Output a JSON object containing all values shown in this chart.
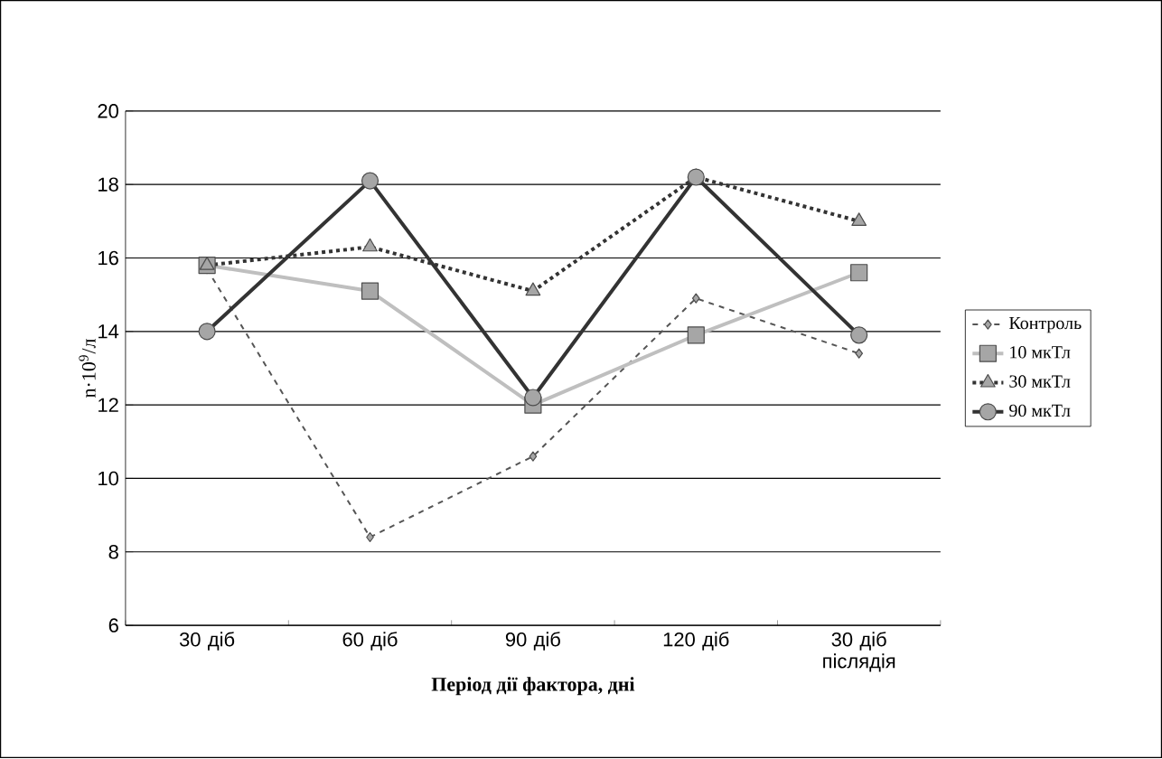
{
  "chart_data": {
    "type": "line",
    "xlabel": "Період дії фактора, дні",
    "ylabel": "n·10$^{9}$/л",
    "categories": [
      "30 діб",
      "60 діб",
      "90 діб",
      "120 діб",
      "30 діб післядія"
    ],
    "ylim": [
      6,
      20
    ],
    "yticks": [
      6,
      8,
      10,
      12,
      14,
      16,
      18,
      20
    ],
    "grid": "y",
    "legend": "right",
    "series": [
      {
        "name": "Контроль",
        "color": "#555555",
        "marker": "diamond",
        "line_style": "dashed",
        "values": [
          15.7,
          8.4,
          10.6,
          14.9,
          13.4
        ]
      },
      {
        "name": "10 мкТл",
        "color": "#bfbfbf",
        "marker": "square",
        "line_style": "solid",
        "values": [
          15.8,
          15.1,
          12.0,
          13.9,
          15.6
        ]
      },
      {
        "name": "30 мкТл",
        "color": "#333333",
        "marker": "triangle",
        "line_style": "dotted",
        "values": [
          15.8,
          16.3,
          15.1,
          18.2,
          17.0
        ]
      },
      {
        "name": "90 мкТл",
        "color": "#333333",
        "marker": "circle",
        "line_style": "solid",
        "values": [
          14.0,
          18.1,
          12.2,
          18.2,
          13.9
        ]
      }
    ]
  }
}
